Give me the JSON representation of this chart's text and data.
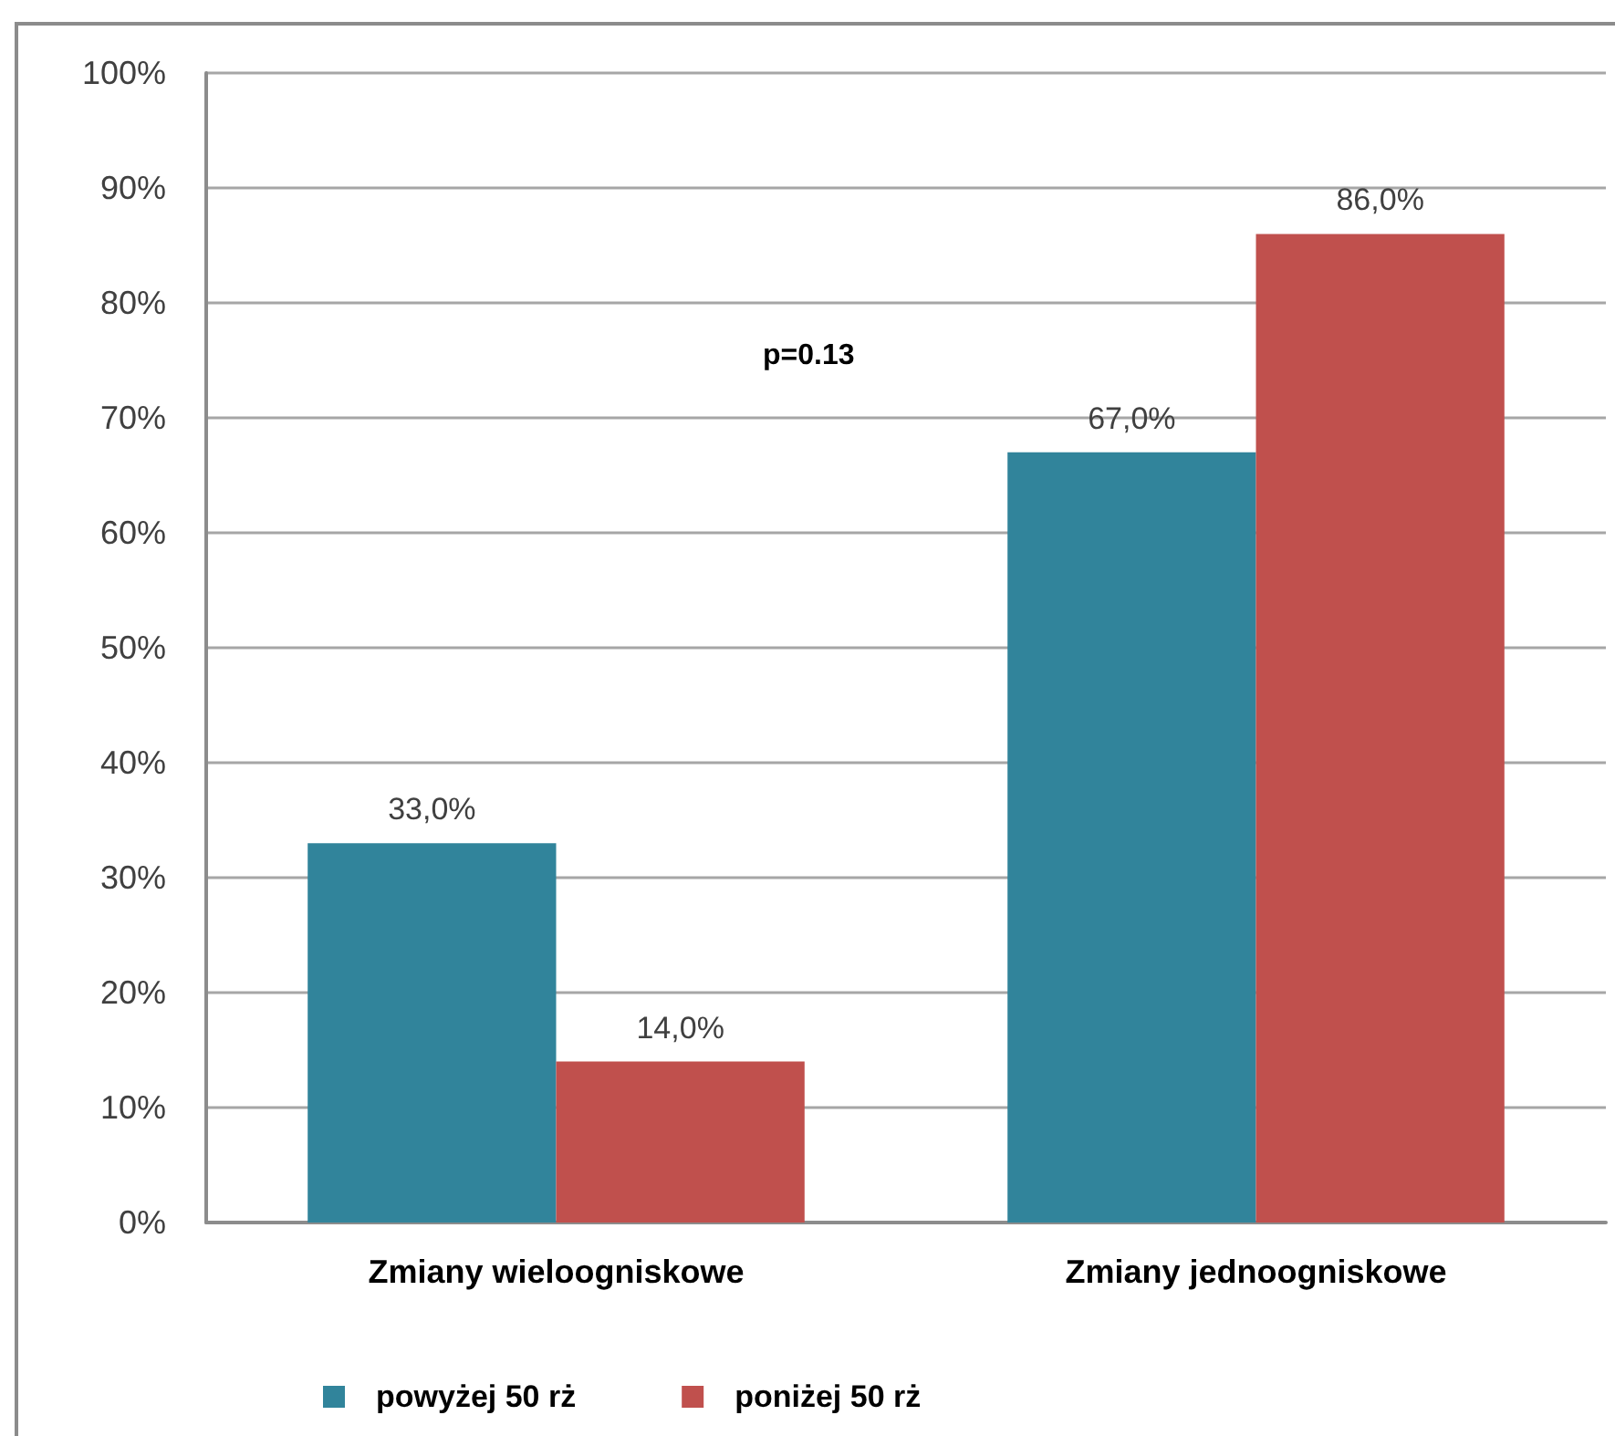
{
  "chart_data": {
    "type": "bar",
    "categories": [
      "Zmiany wieloogniskowe",
      "Zmiany jednoogniskowe"
    ],
    "series": [
      {
        "name": "powyżej 50 rż",
        "color": "#31849b",
        "values": [
          33,
          67
        ],
        "value_labels": [
          "33,0%",
          "67,0%"
        ]
      },
      {
        "name": "poniżej 50 rż",
        "color": "#c0504d",
        "values": [
          14,
          86
        ],
        "value_labels": [
          "14,0%",
          "86,0%"
        ]
      }
    ],
    "ylim": [
      0,
      100
    ],
    "yticks": [
      {
        "value": 0,
        "label": "0%"
      },
      {
        "value": 10,
        "label": "10%"
      },
      {
        "value": 20,
        "label": "20%"
      },
      {
        "value": 30,
        "label": "30%"
      },
      {
        "value": 40,
        "label": "40%"
      },
      {
        "value": 50,
        "label": "50%"
      },
      {
        "value": 60,
        "label": "60%"
      },
      {
        "value": 70,
        "label": "70%"
      },
      {
        "value": 80,
        "label": "80%"
      },
      {
        "value": 90,
        "label": "90%"
      },
      {
        "value": 100,
        "label": "100%"
      }
    ],
    "annotations": [
      "p=0.13"
    ],
    "grid": "y",
    "legend": "bottom"
  }
}
